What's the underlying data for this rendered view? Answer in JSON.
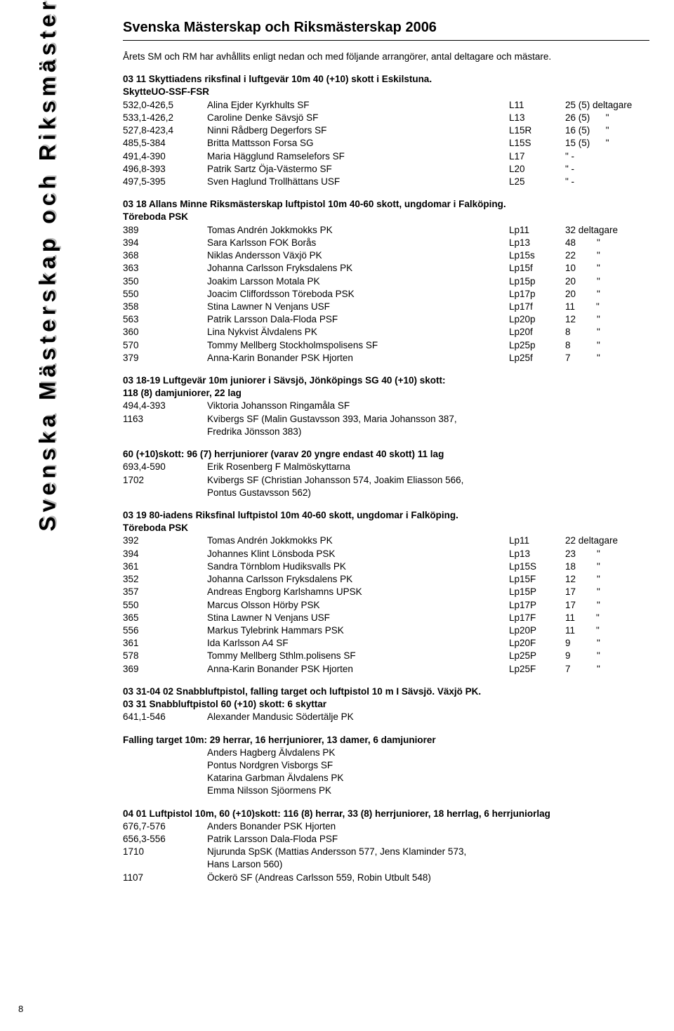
{
  "sidebar_title": "Svenska Mästerskap och Riksmästerskap 2006",
  "page_title": "Svenska Mästerskap och Riksmästerskap 2006",
  "intro": "Årets SM och RM har avhållits enligt nedan och med följande arrangörer, antal deltagare och mästare.",
  "page_number": "8",
  "s1_head": "03 11 Skyttiadens riksfinal i luftgevär 10m 40 (+10) skott i Eskilstuna.",
  "s1_sub": "SkytteUO-SSF-FSR",
  "s1_rows": [
    {
      "score": "532,0-426,5",
      "name": "Alina Ejder Kyrkhults SF",
      "cls": "L11",
      "cnt": "25 (5) deltagare"
    },
    {
      "score": "533,1-426,2",
      "name": "Caroline Denke Sävsjö SF",
      "cls": "L13",
      "cnt": "26 (5)      \""
    },
    {
      "score": "527,8-423,4",
      "name": "Ninni Rådberg Degerfors SF",
      "cls": "L15R",
      "cnt": "16 (5)      \""
    },
    {
      "score": "485,5-384",
      "name": "Britta Mattsson Forsa SG",
      "cls": "L15S",
      "cnt": "15 (5)      \""
    },
    {
      "score": "491,4-390",
      "name": "Maria Hägglund Ramselefors SF",
      "cls": "L17",
      "cnt": "\" -"
    },
    {
      "score": "496,8-393",
      "name": "Patrik Sartz Öja-Västermo SF",
      "cls": "L20",
      "cnt": "\" -"
    },
    {
      "score": "497,5-395",
      "name": "Sven Haglund Trollhättans USF",
      "cls": "L25",
      "cnt": "\" -"
    }
  ],
  "s2_head": "03 18 Allans Minne Riksmästerskap luftpistol 10m 40-60 skott, ungdomar i Falköping.",
  "s2_sub": "Töreboda PSK",
  "s2_rows": [
    {
      "score": "389",
      "name": "Tomas Andrén Jokkmokks PK",
      "cls": "Lp11",
      "cnt": "32 deltagare"
    },
    {
      "score": "394",
      "name": "Sara Karlsson FOK Borås",
      "cls": "Lp13",
      "cnt": "48        \""
    },
    {
      "score": "368",
      "name": "Niklas Andersson Växjö PK",
      "cls": "Lp15s",
      "cnt": "22        \""
    },
    {
      "score": "363",
      "name": "Johanna Carlsson Fryksdalens PK",
      "cls": "Lp15f",
      "cnt": "10        \""
    },
    {
      "score": "350",
      "name": "Joakim Larsson Motala PK",
      "cls": "Lp15p",
      "cnt": "20        \""
    },
    {
      "score": "550",
      "name": "Joacim Cliffordsson Töreboda PSK",
      "cls": "Lp17p",
      "cnt": "20        \""
    },
    {
      "score": "358",
      "name": "Stina Lawner N Venjans USF",
      "cls": "Lp17f",
      "cnt": "11        \""
    },
    {
      "score": "563",
      "name": "Patrik Larsson Dala-Floda PSF",
      "cls": "Lp20p",
      "cnt": "12        \""
    },
    {
      "score": "360",
      "name": "Lina Nykvist Älvdalens PK",
      "cls": "Lp20f",
      "cnt": "8          \""
    },
    {
      "score": "570",
      "name": "Tommy Mellberg Stockholmspolisens SF",
      "cls": "Lp25p",
      "cnt": "8          \""
    },
    {
      "score": "379",
      "name": "Anna-Karin Bonander PSK Hjorten",
      "cls": "Lp25f",
      "cnt": "7          \""
    }
  ],
  "s3_head": "03 18-19 Luftgevär 10m juniorer i Sävsjö, Jönköpings SG  40 (+10) skott:",
  "s3_sub": "118 (8) damjuniorer, 22 lag",
  "s3_rows": [
    {
      "score": "494,4-393",
      "name": "Viktoria Johansson Ringamåla SF",
      "cls": "",
      "cnt": ""
    },
    {
      "score": "1163",
      "name": "Kvibergs SF (Malin Gustavsson 393, Maria Johansson 387,",
      "cls": "",
      "cnt": ""
    },
    {
      "score": "",
      "name": "Fredrika Jönsson 383)",
      "cls": "",
      "cnt": ""
    }
  ],
  "s4_head": "60 (+10)skott: 96 (7) herrjuniorer (varav 20 yngre endast 40 skott) 11 lag",
  "s4_rows": [
    {
      "score": "693,4-590",
      "name": "Erik Rosenberg F Malmöskyttarna",
      "cls": "",
      "cnt": ""
    },
    {
      "score": "1702",
      "name": "Kvibergs SF (Christian Johansson 574, Joakim Eliasson 566,",
      "cls": "",
      "cnt": ""
    },
    {
      "score": "",
      "name": "Pontus Gustavsson 562)",
      "cls": "",
      "cnt": ""
    }
  ],
  "s5_head": "03 19 80-iadens Riksfinal luftpistol 10m 40-60 skott, ungdomar i Falköping.",
  "s5_sub": "Töreboda PSK",
  "s5_rows": [
    {
      "score": "392",
      "name": "Tomas Andrén Jokkmokks PK",
      "cls": "Lp11",
      "cnt": "22 deltagare"
    },
    {
      "score": "394",
      "name": "Johannes Klint Lönsboda PSK",
      "cls": "Lp13",
      "cnt": "23        \""
    },
    {
      "score": "361",
      "name": "Sandra Törnblom Hudiksvalls PK",
      "cls": "Lp15S",
      "cnt": "18        \""
    },
    {
      "score": "352",
      "name": "Johanna Carlsson Fryksdalens PK",
      "cls": "Lp15F",
      "cnt": "12        \""
    },
    {
      "score": "357",
      "name": "Andreas Engborg Karlshamns UPSK",
      "cls": "Lp15P",
      "cnt": "17        \""
    },
    {
      "score": "550",
      "name": "Marcus Olsson Hörby PSK",
      "cls": "Lp17P",
      "cnt": "17        \""
    },
    {
      "score": "365",
      "name": "Stina Lawner N Venjans USF",
      "cls": "Lp17F",
      "cnt": "11        \""
    },
    {
      "score": "556",
      "name": "Markus Tylebrink Hammars PSK",
      "cls": "Lp20P",
      "cnt": "11        \""
    },
    {
      "score": "361",
      "name": "Ida Karlsson A4 SF",
      "cls": "Lp20F",
      "cnt": "9          \""
    },
    {
      "score": "578",
      "name": "Tommy Mellberg Sthlm.polisens SF",
      "cls": "Lp25P",
      "cnt": "9          \""
    },
    {
      "score": "369",
      "name": "Anna-Karin Bonander PSK Hjorten",
      "cls": "Lp25F",
      "cnt": "7          \""
    }
  ],
  "s6_head": "03 31-04 02 Snabbluftpistol, falling target och luftpistol 10 m I Sävsjö. Växjö PK.",
  "s6_sub": "03 31 Snabbluftpistol 60 (+10) skott: 6 skyttar",
  "s6_rows": [
    {
      "score": "641,1-546",
      "name": "Alexander Mandusic Södertälje PK",
      "cls": "",
      "cnt": ""
    }
  ],
  "s7_head": "Falling target 10m: 29 herrar, 16 herrjuniorer, 13 damer, 6 damjuniorer",
  "s7_rows": [
    {
      "score": "",
      "name": "Anders Hagberg Älvdalens PK",
      "cls": "",
      "cnt": ""
    },
    {
      "score": "",
      "name": "Pontus Nordgren Visborgs SF",
      "cls": "",
      "cnt": ""
    },
    {
      "score": "",
      "name": "Katarina Garbman Älvdalens PK",
      "cls": "",
      "cnt": ""
    },
    {
      "score": "",
      "name": "Emma Nilsson Sjöormens PK",
      "cls": "",
      "cnt": ""
    }
  ],
  "s8_head": "04 01 Luftpistol 10m, 60 (+10)skott: 116 (8) herrar, 33 (8) herrjuniorer, 18 herrlag, 6 herrjuniorlag",
  "s8_rows": [
    {
      "score": "676,7-576",
      "name": "Anders Bonander PSK Hjorten",
      "cls": "",
      "cnt": ""
    },
    {
      "score": "656,3-556",
      "name": "Patrik Larsson Dala-Floda PSF",
      "cls": "",
      "cnt": ""
    },
    {
      "score": "1710",
      "name": "Njurunda SpSK (Mattias Andersson 577, Jens Klaminder 573,",
      "cls": "",
      "cnt": ""
    },
    {
      "score": "",
      "name": "Hans Larson 560)",
      "cls": "",
      "cnt": ""
    },
    {
      "score": "1107",
      "name": "Öckerö SF (Andreas Carlsson 559, Robin Utbult 548)",
      "cls": "",
      "cnt": ""
    }
  ]
}
